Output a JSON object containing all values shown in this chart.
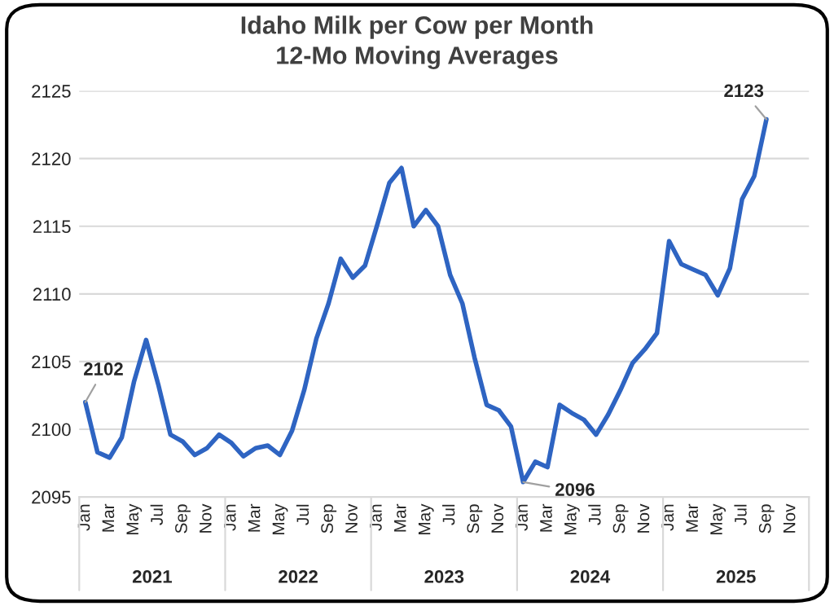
{
  "chart_data": {
    "type": "line",
    "title": "Idaho Milk per Cow per Month",
    "subtitle": "12-Mo Moving Averages",
    "categories": [
      "Jan",
      null,
      "Mar",
      null,
      "May",
      null,
      "Jul",
      null,
      "Sep",
      null,
      "Nov",
      null,
      "Jan",
      null,
      "Mar",
      null,
      "May",
      null,
      "Jul",
      null,
      "Sep",
      null,
      "Nov",
      null,
      "Jan",
      null,
      "Mar",
      null,
      "May",
      null,
      "Jul",
      null,
      "Sep",
      null,
      "Nov",
      null,
      "Jan",
      null,
      "Mar",
      null,
      "May",
      null,
      "Jul",
      null,
      "Sep",
      null,
      "Nov",
      null,
      "Jan",
      null,
      "Mar",
      null,
      "May",
      null,
      "Jul",
      null,
      "Sep",
      null,
      "Nov",
      null
    ],
    "annotations": [
      "2021",
      "2022",
      "2023",
      "2024",
      "2025"
    ],
    "series": [
      {
        "color": "#2e64c2",
        "values": [
          2102.0,
          2098.3,
          2097.9,
          2099.4,
          2103.5,
          2106.6,
          2103.3,
          2099.6,
          2099.1,
          2098.1,
          2098.6,
          2099.6,
          2099.0,
          2098.0,
          2098.6,
          2098.8,
          2098.1,
          2099.9,
          2102.9,
          2106.7,
          2109.3,
          2112.6,
          2111.2,
          2112.1,
          2115.1,
          2118.2,
          2119.3,
          2115.0,
          2116.2,
          2115.0,
          2111.4,
          2109.3,
          2105.3,
          2101.8,
          2101.4,
          2100.2,
          2096.1,
          2097.6,
          2097.2,
          2101.8,
          2101.2,
          2100.7,
          2099.6,
          2101.1,
          2102.9,
          2104.9,
          2105.9,
          2107.1,
          2113.9,
          2112.2,
          2111.8,
          2111.4,
          2109.9,
          2111.9,
          2117.0,
          2118.7,
          2122.9,
          null,
          null,
          null
        ],
        "value_labels": [
          "2102",
          null,
          null,
          null,
          null,
          null,
          null,
          null,
          null,
          null,
          null,
          null,
          null,
          null,
          null,
          null,
          null,
          null,
          null,
          null,
          null,
          null,
          null,
          null,
          null,
          null,
          null,
          null,
          null,
          null,
          null,
          null,
          null,
          null,
          null,
          null,
          "2096",
          null,
          null,
          null,
          null,
          null,
          null,
          null,
          null,
          null,
          null,
          null,
          null,
          null,
          null,
          null,
          null,
          null,
          null,
          null,
          "2123",
          null,
          null,
          null
        ]
      }
    ],
    "ylim": [
      2095,
      2125
    ],
    "yticks": [
      2095,
      2100,
      2105,
      2110,
      2115,
      2120,
      2125
    ],
    "grid": "y",
    "marker": "none",
    "line_style": "solid"
  }
}
